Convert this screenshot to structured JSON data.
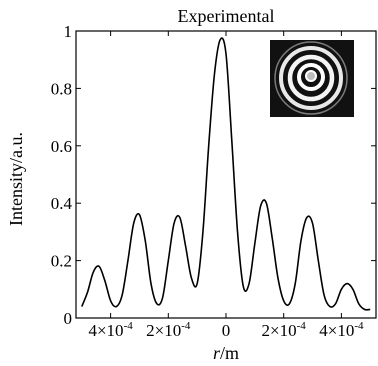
{
  "chart_data": {
    "type": "line",
    "title": "Experimental",
    "xlabel_italic": "r",
    "xlabel_rest": "/m",
    "ylabel": "Intensity/a.u.",
    "xlim": [
      -0.00052,
      0.00052
    ],
    "ylim": [
      0,
      1
    ],
    "grid": false,
    "legend": "none",
    "x_ticks": [
      {
        "value": -0.0004,
        "mantissa": "4×10",
        "exp": "-4"
      },
      {
        "value": -0.0002,
        "mantissa": "2×10",
        "exp": "-4"
      },
      {
        "value": 0,
        "mantissa": "0",
        "exp": ""
      },
      {
        "value": 0.0002,
        "mantissa": "2×10",
        "exp": "-4"
      },
      {
        "value": 0.0004,
        "mantissa": "4×10",
        "exp": "-4"
      }
    ],
    "y_ticks": [
      {
        "value": 0,
        "label": "0"
      },
      {
        "value": 0.2,
        "label": "0.2"
      },
      {
        "value": 0.4,
        "label": "0.4"
      },
      {
        "value": 0.6,
        "label": "0.6"
      },
      {
        "value": 0.8,
        "label": "0.8"
      },
      {
        "value": 1,
        "label": "1"
      }
    ],
    "series": [
      {
        "color": "#000000",
        "x": [
          -0.0005,
          -0.00048,
          -0.00046,
          -0.00044,
          -0.00042,
          -0.0004,
          -0.00038,
          -0.00036,
          -0.00034,
          -0.00032,
          -0.0003,
          -0.00028,
          -0.00026,
          -0.00024,
          -0.00022,
          -0.0002,
          -0.00018,
          -0.00016,
          -0.00014,
          -0.00012,
          -0.0001,
          -8e-05,
          -6e-05,
          -4e-05,
          -2e-05,
          0.0,
          2e-05,
          4e-05,
          6e-05,
          8e-05,
          0.0001,
          0.00012,
          0.00014,
          0.00016,
          0.00018,
          0.0002,
          0.00022,
          0.00024,
          0.00026,
          0.00028,
          0.0003,
          0.00032,
          0.00034,
          0.00036,
          0.00038,
          0.0004,
          0.00042,
          0.00044,
          0.00046,
          0.00048,
          0.0005
        ],
        "y": [
          0.04,
          0.09,
          0.16,
          0.18,
          0.13,
          0.06,
          0.04,
          0.08,
          0.2,
          0.33,
          0.36,
          0.27,
          0.12,
          0.05,
          0.07,
          0.2,
          0.33,
          0.35,
          0.25,
          0.14,
          0.12,
          0.3,
          0.6,
          0.85,
          0.97,
          0.92,
          0.62,
          0.3,
          0.11,
          0.12,
          0.26,
          0.39,
          0.4,
          0.28,
          0.14,
          0.06,
          0.05,
          0.12,
          0.27,
          0.35,
          0.33,
          0.2,
          0.08,
          0.04,
          0.05,
          0.1,
          0.12,
          0.1,
          0.05,
          0.03,
          0.03
        ]
      }
    ],
    "inset": {
      "type": "image",
      "description_icon": "concentric-rings-pattern-icon"
    }
  }
}
